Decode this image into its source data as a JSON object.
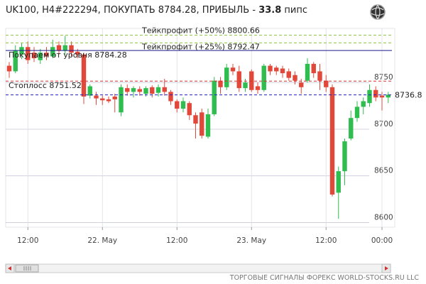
{
  "chart_data": {
    "type": "candlestick",
    "title": "UK100, H4#222294, ПОКУПАТЬ 8784.28, ПРИБЫЛЬ -",
    "profit": "33.8",
    "profit_unit": "пипс",
    "footer": "ТОРГОВЫЕ СИГНАЛЫ ФОРЕКС WORLD-STOCKS.RU LLC",
    "categories": [
      null,
      null,
      null,
      "12:00",
      null,
      null,
      null,
      null,
      null,
      null,
      null,
      null,
      null,
      null,
      null,
      "22. May",
      null,
      null,
      null,
      null,
      null,
      null,
      null,
      null,
      null,
      null,
      null,
      "12:00",
      null,
      null,
      null,
      null,
      null,
      null,
      null,
      null,
      null,
      null,
      null,
      "23. May",
      null,
      null,
      null,
      null,
      null,
      null,
      null,
      null,
      null,
      null,
      null,
      "12:00",
      null,
      null,
      null,
      null,
      null,
      null,
      null,
      null,
      "00:00",
      null
    ],
    "open": [
      8768,
      8762,
      8780,
      8788,
      8782,
      8774,
      8782,
      8778,
      8790,
      8784,
      8790,
      8783,
      8780,
      8736,
      8736,
      8733,
      8732,
      8735,
      8718,
      8744,
      8740,
      8743,
      8738,
      8745,
      8739,
      8745,
      8740,
      8730,
      8722,
      8728,
      8715,
      8718,
      8692,
      8716,
      8752,
      8745,
      8766,
      8762,
      8744,
      8762,
      8746,
      8742,
      8768,
      8766,
      8765,
      8762,
      8758,
      8750,
      8752,
      8770,
      8762,
      8752,
      8745,
      8632,
      8655,
      8690,
      8712,
      8724,
      8728,
      8742,
      8736,
      8734
    ],
    "high": [
      8772,
      8790,
      8792,
      8794,
      8788,
      8786,
      8788,
      8796,
      8794,
      8800,
      8794,
      8786,
      8782,
      8748,
      8740,
      8736,
      8735,
      8738,
      8748,
      8748,
      8746,
      8746,
      8746,
      8747,
      8748,
      8754,
      8742,
      8732,
      8734,
      8730,
      8718,
      8722,
      8722,
      8756,
      8756,
      8770,
      8770,
      8768,
      8754,
      8764,
      8750,
      8770,
      8770,
      8768,
      8768,
      8765,
      8762,
      8754,
      8776,
      8772,
      8770,
      8758,
      8748,
      8660,
      8690,
      8720,
      8730,
      8734,
      8748,
      8746,
      8740,
      8740
    ],
    "low": [
      8755,
      8760,
      8775,
      8770,
      8772,
      8770,
      8774,
      8776,
      8780,
      8780,
      8778,
      8776,
      8727,
      8733,
      8726,
      8726,
      8728,
      8718,
      8714,
      8736,
      8734,
      8736,
      8735,
      8734,
      8735,
      8736,
      8726,
      8718,
      8718,
      8710,
      8690,
      8690,
      8690,
      8714,
      8738,
      8742,
      8758,
      8740,
      8740,
      8740,
      8738,
      8740,
      8758,
      8758,
      8755,
      8752,
      8748,
      8738,
      8750,
      8755,
      8742,
      8740,
      8628,
      8604,
      8640,
      8688,
      8708,
      8716,
      8724,
      8730,
      8720,
      8728
    ],
    "close": [
      8762,
      8784,
      8788,
      8774,
      8776,
      8782,
      8778,
      8788,
      8784,
      8790,
      8782,
      8780,
      8735,
      8746,
      8733,
      8731,
      8730,
      8732,
      8745,
      8740,
      8744,
      8740,
      8744,
      8738,
      8745,
      8740,
      8730,
      8722,
      8730,
      8715,
      8706,
      8693,
      8716,
      8752,
      8745,
      8766,
      8762,
      8744,
      8750,
      8742,
      8742,
      8768,
      8762,
      8762,
      8760,
      8755,
      8752,
      8745,
      8770,
      8760,
      8752,
      8745,
      8630,
      8655,
      8687,
      8712,
      8724,
      8730,
      8742,
      8734,
      8734,
      8737
    ],
    "up_color": "#2ebd4e",
    "down_color": "#e2483a",
    "levels": [
      {
        "label": "Тейкпрофит (+50%) 8800.66",
        "value": 8800.66,
        "color": "#8cc63f",
        "dashed": true
      },
      {
        "label": "Тейкпрофит (+25%) 8792.47",
        "value": 8792.47,
        "color": "#8cc63f",
        "dashed": true
      },
      {
        "label": "Покупаем от уровня 8784.28",
        "value": 8784.28,
        "color": "#1a1a8c",
        "dashed": false
      },
      {
        "label": "Стоплосс 8751.52",
        "value": 8751.52,
        "color": "#d03030",
        "dashed": true
      }
    ],
    "last_price": 8736.8,
    "last_price_color": "#2020c0",
    "ylim": [
      8595,
      8808
    ],
    "yticks": [
      8600,
      8650,
      8700,
      8750
    ],
    "grid": true
  }
}
